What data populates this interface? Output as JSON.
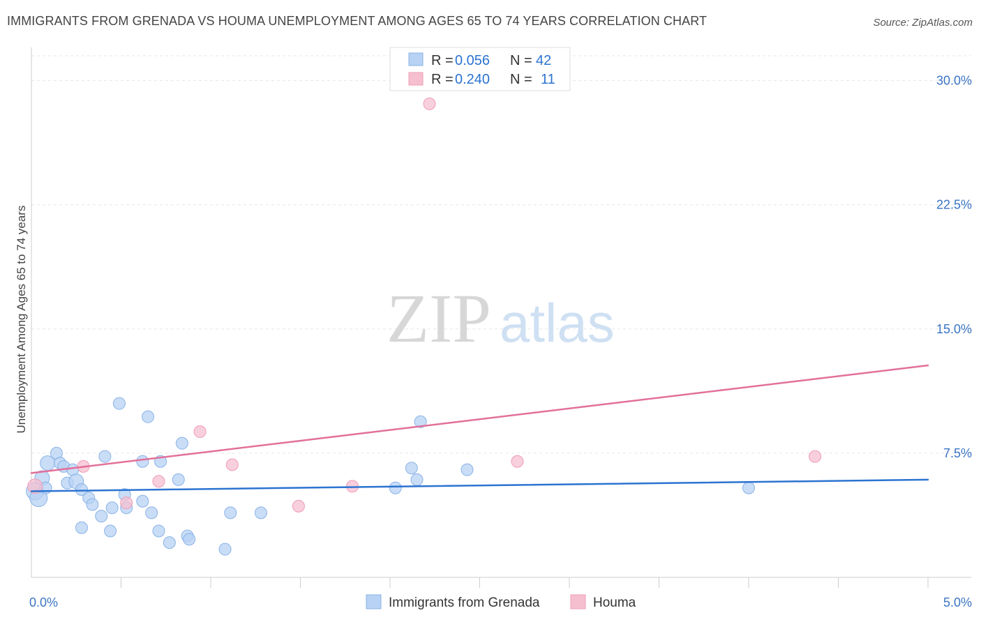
{
  "header": {
    "title": "IMMIGRANTS FROM GRENADA VS HOUMA UNEMPLOYMENT AMONG AGES 65 TO 74 YEARS CORRELATION CHART",
    "source": "Source: ZipAtlas.com"
  },
  "watermark": {
    "zip": "ZIP",
    "atlas": "atlas"
  },
  "colors": {
    "blue_fill": "#b7d2f4",
    "blue_stroke": "#8ab3e6",
    "blue_line": "#2b73d1",
    "pink_fill": "#f6bfd0",
    "pink_stroke": "#ee9db6",
    "pink_line": "#e2709a",
    "tick_text": "#3a74c4",
    "grid": "#e6e6e6"
  },
  "legend": {
    "rows": [
      {
        "r_label": "R =",
        "r_value": "0.056",
        "n_label": "N =",
        "n_value": "42"
      },
      {
        "r_label": "R =",
        "r_value": "0.240",
        "n_label": "N =",
        "n_value": "11"
      }
    ]
  },
  "chart_data": {
    "type": "scatter",
    "title": "IMMIGRANTS FROM GRENADA VS HOUMA UNEMPLOYMENT AMONG AGES 65 TO 74 YEARS CORRELATION CHART",
    "xlabel": "",
    "ylabel": "Unemployment Among Ages 65 to 74 years",
    "xlim": [
      0,
      5
    ],
    "ylim": [
      0,
      31.5
    ],
    "x_tick_labels": [
      {
        "value": 0,
        "label": "0.0%"
      },
      {
        "value": 5,
        "label": "5.0%"
      }
    ],
    "y_tick_labels": [
      {
        "value": 7.5,
        "label": "7.5%"
      },
      {
        "value": 15,
        "label": "15.0%"
      },
      {
        "value": 22.5,
        "label": "22.5%"
      },
      {
        "value": 30,
        "label": "30.0%"
      }
    ],
    "x_minor_ticks": [
      0.5,
      1.0,
      1.5,
      2.0,
      2.5,
      3.0,
      3.5,
      4.0,
      4.5,
      5.0
    ],
    "grid": true,
    "legend_position": "top-center",
    "series": [
      {
        "name": "Immigrants from Grenada",
        "color": "blue",
        "trend": {
          "x": [
            0,
            5
          ],
          "y": [
            5.2,
            5.9
          ]
        },
        "points": [
          {
            "x": 0.02,
            "y": 5.2,
            "size": "large"
          },
          {
            "x": 0.04,
            "y": 4.8,
            "size": "large"
          },
          {
            "x": 0.06,
            "y": 6.0,
            "size": "medium"
          },
          {
            "x": 0.08,
            "y": 5.4,
            "size": "small"
          },
          {
            "x": 0.09,
            "y": 6.9,
            "size": "medium"
          },
          {
            "x": 0.14,
            "y": 7.5,
            "size": "small"
          },
          {
            "x": 0.16,
            "y": 6.9,
            "size": "small"
          },
          {
            "x": 0.18,
            "y": 6.7,
            "size": "small"
          },
          {
            "x": 0.2,
            "y": 5.7,
            "size": "small"
          },
          {
            "x": 0.23,
            "y": 6.5,
            "size": "small"
          },
          {
            "x": 0.25,
            "y": 5.8,
            "size": "medium"
          },
          {
            "x": 0.28,
            "y": 5.3,
            "size": "small"
          },
          {
            "x": 0.28,
            "y": 3.0,
            "size": "small"
          },
          {
            "x": 0.32,
            "y": 4.8,
            "size": "small"
          },
          {
            "x": 0.34,
            "y": 4.4,
            "size": "small"
          },
          {
            "x": 0.39,
            "y": 3.7,
            "size": "small"
          },
          {
            "x": 0.41,
            "y": 7.3,
            "size": "small"
          },
          {
            "x": 0.44,
            "y": 2.8,
            "size": "small"
          },
          {
            "x": 0.45,
            "y": 4.2,
            "size": "small"
          },
          {
            "x": 0.49,
            "y": 10.5,
            "size": "small"
          },
          {
            "x": 0.52,
            "y": 5.0,
            "size": "small"
          },
          {
            "x": 0.53,
            "y": 4.2,
            "size": "small"
          },
          {
            "x": 0.62,
            "y": 4.6,
            "size": "small"
          },
          {
            "x": 0.62,
            "y": 7.0,
            "size": "small"
          },
          {
            "x": 0.65,
            "y": 9.7,
            "size": "small"
          },
          {
            "x": 0.67,
            "y": 3.9,
            "size": "small"
          },
          {
            "x": 0.71,
            "y": 2.8,
            "size": "small"
          },
          {
            "x": 0.72,
            "y": 7.0,
            "size": "small"
          },
          {
            "x": 0.77,
            "y": 2.1,
            "size": "small"
          },
          {
            "x": 0.82,
            "y": 5.9,
            "size": "small"
          },
          {
            "x": 0.84,
            "y": 8.1,
            "size": "small"
          },
          {
            "x": 0.87,
            "y": 2.5,
            "size": "small"
          },
          {
            "x": 0.88,
            "y": 2.3,
            "size": "small"
          },
          {
            "x": 1.08,
            "y": 1.7,
            "size": "small"
          },
          {
            "x": 1.11,
            "y": 3.9,
            "size": "small"
          },
          {
            "x": 1.28,
            "y": 3.9,
            "size": "small"
          },
          {
            "x": 2.03,
            "y": 5.4,
            "size": "small"
          },
          {
            "x": 2.12,
            "y": 6.6,
            "size": "small"
          },
          {
            "x": 2.15,
            "y": 5.9,
            "size": "small"
          },
          {
            "x": 2.17,
            "y": 9.4,
            "size": "small"
          },
          {
            "x": 2.43,
            "y": 6.5,
            "size": "small"
          },
          {
            "x": 4.0,
            "y": 5.4,
            "size": "small"
          }
        ]
      },
      {
        "name": "Houma",
        "color": "pink",
        "trend": {
          "x": [
            0,
            5
          ],
          "y": [
            6.3,
            12.8
          ]
        },
        "points": [
          {
            "x": 0.02,
            "y": 5.5,
            "size": "medium"
          },
          {
            "x": 0.29,
            "y": 6.7,
            "size": "small"
          },
          {
            "x": 0.53,
            "y": 4.5,
            "size": "small"
          },
          {
            "x": 0.71,
            "y": 5.8,
            "size": "small"
          },
          {
            "x": 0.94,
            "y": 8.8,
            "size": "small"
          },
          {
            "x": 1.12,
            "y": 6.8,
            "size": "small"
          },
          {
            "x": 1.49,
            "y": 4.3,
            "size": "small"
          },
          {
            "x": 1.79,
            "y": 5.5,
            "size": "small"
          },
          {
            "x": 2.22,
            "y": 28.6,
            "size": "small"
          },
          {
            "x": 2.71,
            "y": 7.0,
            "size": "small"
          },
          {
            "x": 4.37,
            "y": 7.3,
            "size": "small"
          }
        ]
      }
    ]
  }
}
